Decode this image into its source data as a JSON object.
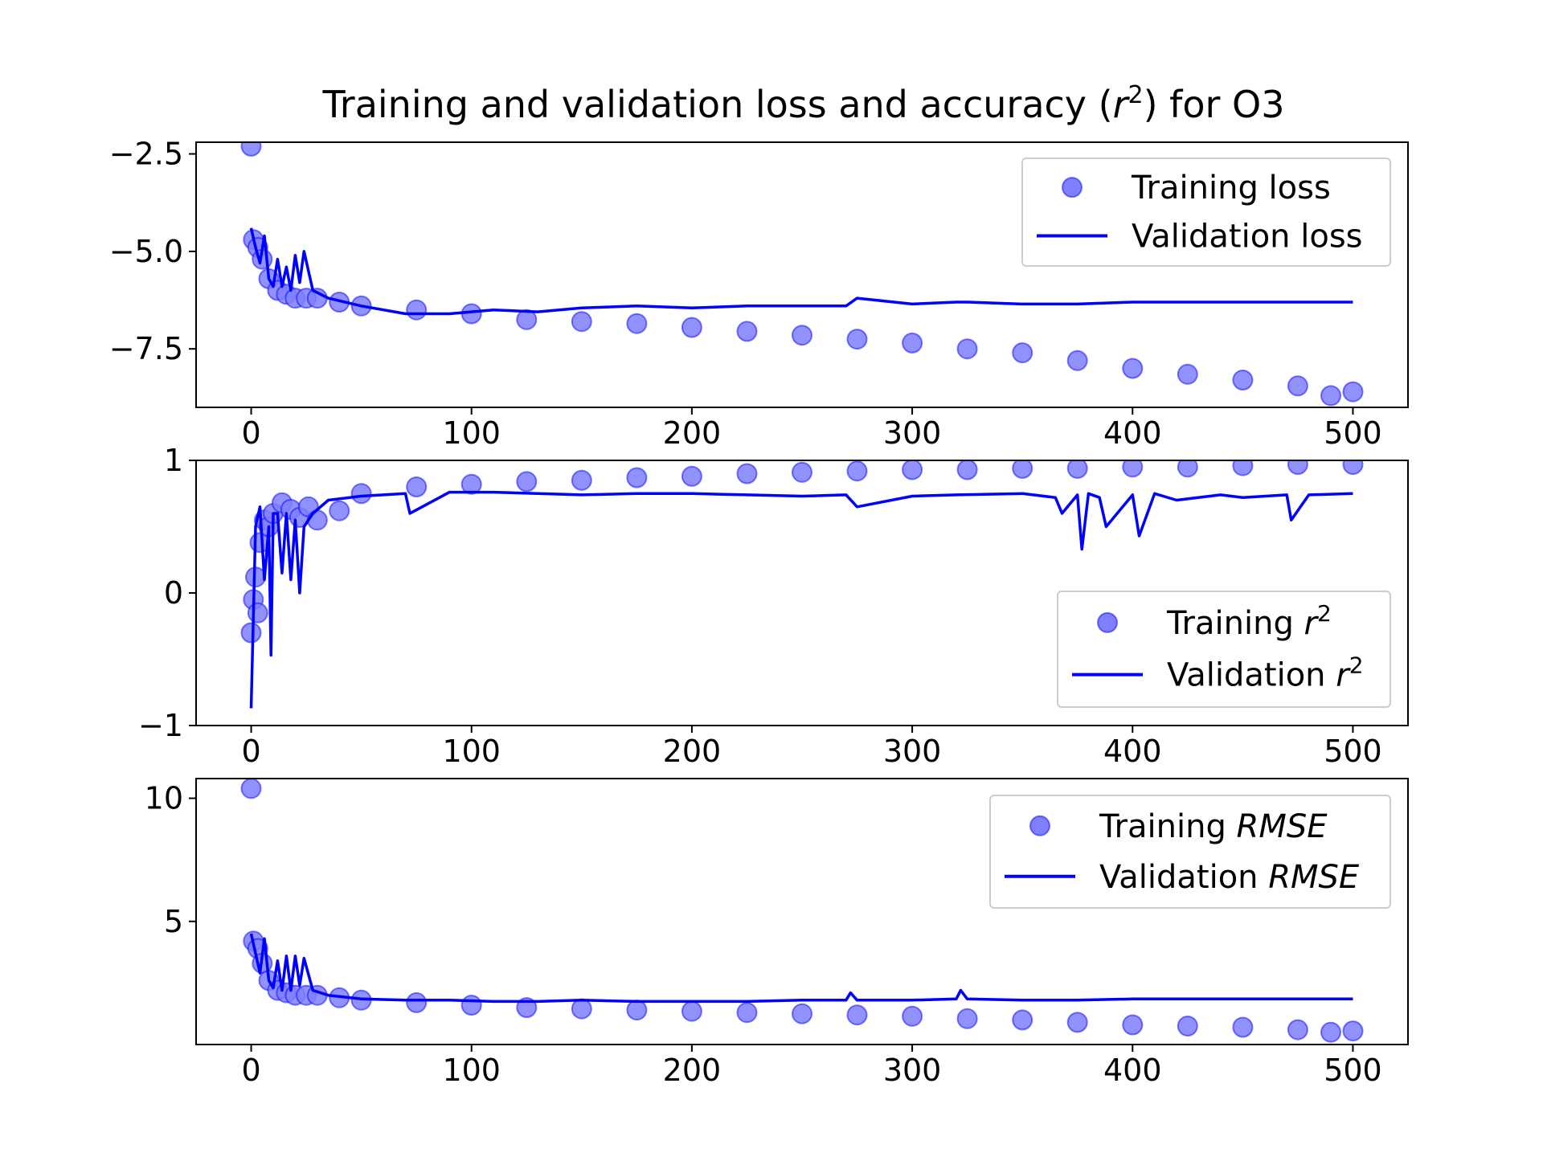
{
  "title": "Training and validation loss and accuracy (r²) for O3",
  "colors": {
    "series": "#0000ff",
    "marker_fill": "#7f7fff"
  },
  "chart_data": [
    {
      "type": "line",
      "xlim": [
        -25,
        525
      ],
      "ylim": [
        -9.0,
        -2.2
      ],
      "xticks": [
        0,
        100,
        200,
        300,
        400,
        500
      ],
      "xtick_labels": [
        "0",
        "100",
        "200",
        "300",
        "400",
        "500"
      ],
      "yticks": [
        -2.5,
        -5.0,
        -7.5
      ],
      "ytick_labels": [
        "−2.5",
        "−5.0",
        "−7.5"
      ],
      "legend": "top-right",
      "series": [
        {
          "name": "Training loss",
          "style": "scatter",
          "x": [
            0,
            1,
            3,
            5,
            8,
            12,
            16,
            20,
            25,
            30,
            40,
            50,
            75,
            100,
            125,
            150,
            175,
            200,
            225,
            250,
            275,
            300,
            325,
            350,
            375,
            400,
            425,
            450,
            475,
            490,
            500
          ],
          "y": [
            -2.3,
            -4.7,
            -4.9,
            -5.2,
            -5.7,
            -6.0,
            -6.1,
            -6.2,
            -6.2,
            -6.2,
            -6.3,
            -6.4,
            -6.5,
            -6.6,
            -6.75,
            -6.8,
            -6.85,
            -6.95,
            -7.05,
            -7.15,
            -7.25,
            -7.35,
            -7.5,
            -7.6,
            -7.8,
            -8.0,
            -8.15,
            -8.3,
            -8.45,
            -8.7,
            -8.6
          ]
        },
        {
          "name": "Validation loss",
          "style": "line",
          "x": [
            0,
            2,
            4,
            6,
            8,
            10,
            12,
            14,
            16,
            18,
            20,
            22,
            24,
            28,
            35,
            50,
            70,
            90,
            110,
            130,
            150,
            175,
            200,
            225,
            250,
            270,
            275,
            300,
            320,
            325,
            350,
            375,
            400,
            425,
            450,
            475,
            500
          ],
          "y": [
            -4.4,
            -4.9,
            -5.3,
            -4.6,
            -5.7,
            -5.9,
            -5.2,
            -5.9,
            -5.4,
            -6.0,
            -5.1,
            -5.8,
            -5.0,
            -6.0,
            -6.2,
            -6.4,
            -6.6,
            -6.6,
            -6.5,
            -6.55,
            -6.45,
            -6.4,
            -6.45,
            -6.4,
            -6.4,
            -6.4,
            -6.2,
            -6.35,
            -6.3,
            -6.3,
            -6.35,
            -6.35,
            -6.3,
            -6.3,
            -6.3,
            -6.3,
            -6.3
          ]
        }
      ]
    },
    {
      "type": "line",
      "xlim": [
        -25,
        525
      ],
      "ylim": [
        -1.0,
        1.0
      ],
      "xticks": [
        0,
        100,
        200,
        300,
        400,
        500
      ],
      "xtick_labels": [
        "0",
        "100",
        "200",
        "300",
        "400",
        "500"
      ],
      "yticks": [
        1,
        0,
        -1
      ],
      "ytick_labels": [
        "1",
        "0",
        "−1"
      ],
      "legend": "center-right",
      "series": [
        {
          "name": "Training r²",
          "style": "scatter",
          "x": [
            0,
            1,
            2,
            3,
            4,
            6,
            8,
            10,
            14,
            18,
            22,
            26,
            30,
            40,
            50,
            75,
            100,
            125,
            150,
            175,
            200,
            225,
            250,
            275,
            300,
            325,
            350,
            375,
            400,
            425,
            450,
            475,
            500
          ],
          "y": [
            -0.3,
            -0.05,
            0.12,
            -0.15,
            0.38,
            0.55,
            0.5,
            0.6,
            0.68,
            0.63,
            0.57,
            0.65,
            0.55,
            0.62,
            0.75,
            0.8,
            0.82,
            0.84,
            0.85,
            0.87,
            0.88,
            0.9,
            0.91,
            0.92,
            0.93,
            0.93,
            0.94,
            0.94,
            0.95,
            0.95,
            0.96,
            0.97,
            0.97
          ]
        },
        {
          "name": "Validation r²",
          "style": "line",
          "x": [
            0,
            2,
            4,
            6,
            8,
            9,
            10,
            12,
            14,
            16,
            18,
            20,
            22,
            24,
            28,
            35,
            50,
            70,
            72,
            90,
            110,
            130,
            150,
            175,
            200,
            225,
            250,
            270,
            275,
            300,
            320,
            350,
            365,
            368,
            375,
            377,
            380,
            385,
            388,
            400,
            403,
            410,
            420,
            440,
            450,
            470,
            472,
            480,
            500
          ],
          "y": [
            -0.87,
            0.5,
            0.65,
            0.1,
            0.5,
            -0.47,
            0.6,
            0.6,
            0.15,
            0.6,
            0.1,
            0.55,
            0.0,
            0.5,
            0.6,
            0.7,
            0.73,
            0.75,
            0.6,
            0.76,
            0.76,
            0.75,
            0.74,
            0.75,
            0.75,
            0.74,
            0.73,
            0.74,
            0.65,
            0.73,
            0.74,
            0.75,
            0.72,
            0.6,
            0.74,
            0.33,
            0.75,
            0.72,
            0.5,
            0.74,
            0.43,
            0.75,
            0.7,
            0.74,
            0.72,
            0.74,
            0.55,
            0.74,
            0.75
          ]
        }
      ]
    },
    {
      "type": "line",
      "xlim": [
        -25,
        525
      ],
      "ylim": [
        0,
        10.8
      ],
      "xticks": [
        0,
        100,
        200,
        300,
        400,
        500
      ],
      "xtick_labels": [
        "0",
        "100",
        "200",
        "300",
        "400",
        "500"
      ],
      "yticks": [
        10,
        5
      ],
      "ytick_labels": [
        "10",
        "5"
      ],
      "legend": "top-right",
      "series": [
        {
          "name": "Training RMSE",
          "style": "scatter",
          "x": [
            0,
            1,
            3,
            5,
            8,
            12,
            16,
            20,
            25,
            30,
            40,
            50,
            75,
            100,
            125,
            150,
            175,
            200,
            225,
            250,
            275,
            300,
            325,
            350,
            375,
            400,
            425,
            450,
            475,
            490,
            500
          ],
          "y": [
            10.4,
            4.2,
            3.9,
            3.3,
            2.6,
            2.2,
            2.1,
            2.0,
            2.0,
            2.0,
            1.9,
            1.8,
            1.7,
            1.6,
            1.5,
            1.45,
            1.4,
            1.35,
            1.3,
            1.25,
            1.2,
            1.15,
            1.05,
            1.0,
            0.9,
            0.8,
            0.75,
            0.7,
            0.6,
            0.5,
            0.55
          ]
        },
        {
          "name": "Validation RMSE",
          "style": "line",
          "x": [
            0,
            2,
            4,
            6,
            8,
            10,
            12,
            14,
            16,
            18,
            20,
            22,
            24,
            28,
            35,
            50,
            70,
            90,
            110,
            130,
            150,
            175,
            200,
            225,
            250,
            270,
            272,
            275,
            300,
            320,
            322,
            325,
            350,
            375,
            400,
            425,
            450,
            475,
            500
          ],
          "y": [
            4.5,
            3.7,
            2.9,
            4.3,
            2.6,
            2.3,
            3.4,
            2.2,
            3.6,
            2.2,
            3.6,
            2.4,
            3.5,
            2.2,
            2.0,
            1.85,
            1.8,
            1.8,
            1.75,
            1.75,
            1.8,
            1.75,
            1.75,
            1.75,
            1.8,
            1.8,
            2.1,
            1.8,
            1.8,
            1.85,
            2.2,
            1.85,
            1.8,
            1.8,
            1.85,
            1.85,
            1.85,
            1.85,
            1.85
          ]
        }
      ]
    }
  ]
}
